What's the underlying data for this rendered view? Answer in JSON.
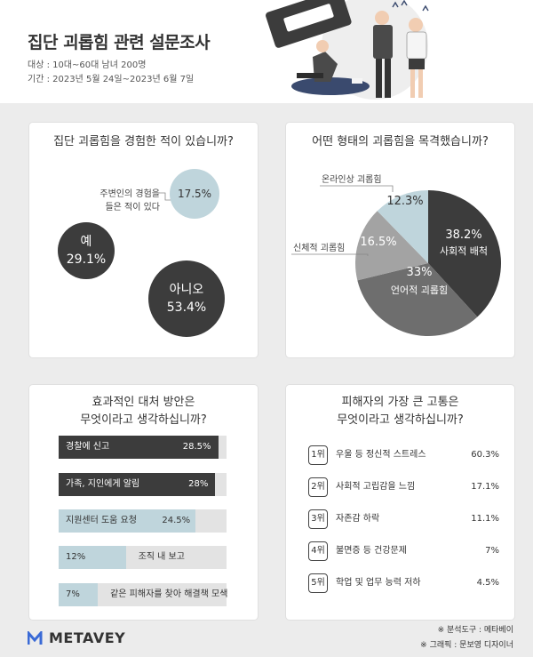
{
  "header": {
    "title": "집단 괴롭힘 관련 설문조사",
    "target": "대상 : 10대~60대 남녀 200명",
    "period": "기간 : 2023년 5월 24일~2023년 6월 7일"
  },
  "chart_data": [
    {
      "type": "bubble",
      "title": "집단 괴롭힘을 경험한 적이 있습니까?",
      "items": [
        {
          "label": "예",
          "value": 29.1,
          "display": "29.1%"
        },
        {
          "label": "아니오",
          "value": 53.4,
          "display": "53.4%"
        },
        {
          "label": "주변인의 경험을 들은 적이 있다",
          "label_lines": [
            "주변인의 경험을",
            "들은 적이 있다"
          ],
          "value": 17.5,
          "display": "17.5%"
        }
      ]
    },
    {
      "type": "pie",
      "title": "어떤 형태의 괴롭힘을 목격했습니까?",
      "slices": [
        {
          "label": "사회적 배척",
          "value": 38.2,
          "display": "38.2%",
          "color": "#3c3c3c"
        },
        {
          "label": "언어적 괴롭힘",
          "value": 33,
          "display": "33%",
          "color": "#6e6e6e"
        },
        {
          "label": "신체적 괴롭힘",
          "value": 16.5,
          "display": "16.5%",
          "color": "#a3a3a3"
        },
        {
          "label": "온라인상 괴롭힘",
          "value": 12.3,
          "display": "12.3%",
          "color": "#bfd5dc"
        }
      ]
    },
    {
      "type": "bar",
      "title": "효과적인 대처 방안은 무엇이라고 생각하십니까?",
      "title_lines": [
        "효과적인 대처 방안은",
        "무엇이라고 생각하십니까?"
      ],
      "bars": [
        {
          "label": "경찰에 신고",
          "value": 28.5,
          "display": "28.5%",
          "color": "#3c3c3c"
        },
        {
          "label": "가족, 지인에게 알림",
          "value": 28,
          "display": "28%",
          "color": "#3c3c3c"
        },
        {
          "label": "지원센터 도움 요청",
          "value": 24.5,
          "display": "24.5%",
          "color": "#bfd5dc"
        },
        {
          "label": "조직 내 보고",
          "value": 12,
          "display": "12%",
          "color": "#bfd5dc"
        },
        {
          "label": "같은 피해자를 찾아 해결책 모색",
          "value": 7,
          "display": "7%",
          "color": "#bfd5dc"
        }
      ]
    },
    {
      "type": "table",
      "title": "피해자의 가장 큰 고통은 무엇이라고 생각하십니까?",
      "title_lines": [
        "피해자의 가장 큰 고통은",
        "무엇이라고 생각하십니까?"
      ],
      "rows": [
        {
          "rank": "1위",
          "label": "우울 등 정신적 스트레스",
          "value": 60.3,
          "display": "60.3%"
        },
        {
          "rank": "2위",
          "label": "사회적 고립감을 느낌",
          "value": 17.1,
          "display": "17.1%"
        },
        {
          "rank": "3위",
          "label": "자존감 하락",
          "value": 11.1,
          "display": "11.1%"
        },
        {
          "rank": "4위",
          "label": "불면증 등 건강문제",
          "value": 7,
          "display": "7%"
        },
        {
          "rank": "5위",
          "label": "학업 및 업무 능력 저하",
          "value": 4.5,
          "display": "4.5%"
        }
      ]
    }
  ],
  "footer": {
    "logo": "METAVEY",
    "credit_tool": "※ 분석도구 : 메타베이",
    "credit_graphic": "※ 그래픽 : 문보영 디자이너"
  }
}
